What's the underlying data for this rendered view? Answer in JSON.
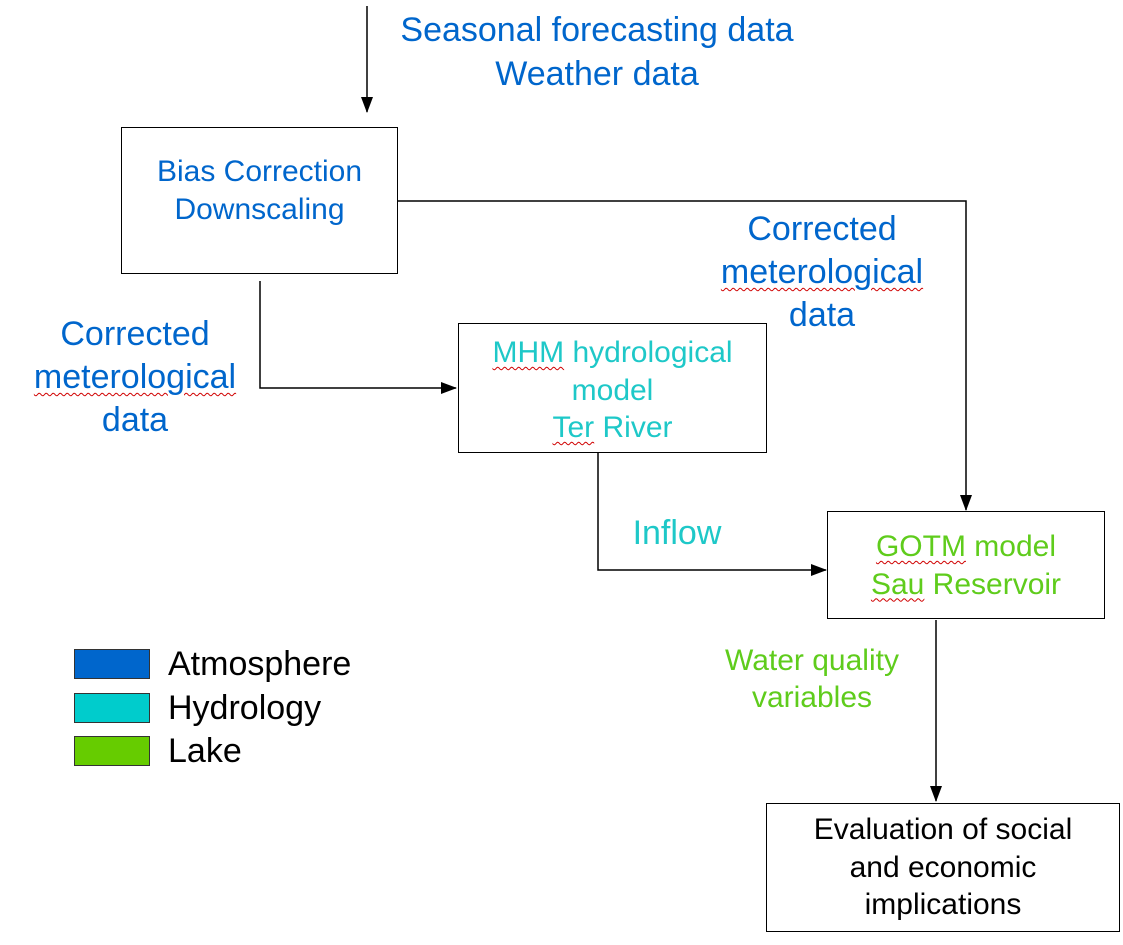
{
  "colors": {
    "atmosphere": "#0066cc",
    "hydrology": "#00cccc",
    "lake": "#66cc00",
    "text_hydrology": "#1ec8c8",
    "text_lake": "#5fcc1c"
  },
  "inputs": {
    "line1": "Seasonal forecasting data",
    "line2": "Weather data"
  },
  "nodes": {
    "bias": {
      "line1": "Bias Correction",
      "line2": "Downscaling"
    },
    "mhm": {
      "line1_a": "MHM",
      "line1_b": " hydrological",
      "line2": "model",
      "line3_a": "Ter",
      "line3_b": " River"
    },
    "gotm": {
      "line1_a": "GOTM",
      "line1_b": " model",
      "line2_a": "Sau",
      "line2_b": " Reservoir"
    },
    "eval": {
      "line1": "Evaluation of social",
      "line2": "and economic",
      "line3": "implications"
    }
  },
  "edges": {
    "corrected_right": {
      "line1": "Corrected",
      "line2": "meterological",
      "line3": "data"
    },
    "corrected_left": {
      "line1": "Corrected",
      "line2": "meterological",
      "line3": "data"
    },
    "inflow": "Inflow",
    "water_quality": {
      "line1": "Water quality",
      "line2": "variables"
    }
  },
  "legend": [
    {
      "label": "Atmosphere",
      "color": "#0066cc"
    },
    {
      "label": "Hydrology",
      "color": "#00cccc"
    },
    {
      "label": "Lake",
      "color": "#66cc00"
    }
  ]
}
